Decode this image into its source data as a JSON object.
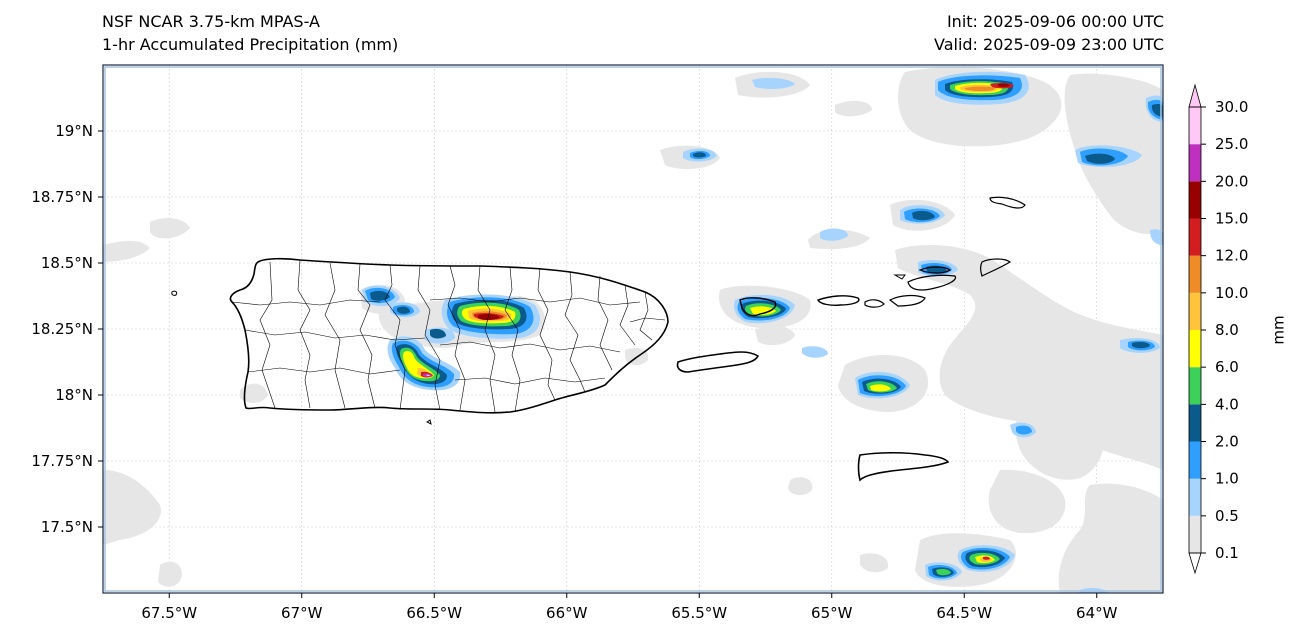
{
  "header": {
    "model": "NSF NCAR 3.75-km MPAS-A",
    "field": "1-hr Accumulated Precipitation (mm)",
    "init": "Init: 2025-09-06 00:00 UTC",
    "valid": "Valid: 2025-09-09 23:00 UTC"
  },
  "axes": {
    "lon_ticks": [
      "67.5°W",
      "67°W",
      "66.5°W",
      "66°W",
      "65.5°W",
      "65°W",
      "64.5°W",
      "64°W"
    ],
    "lat_ticks": [
      "19°N",
      "18.75°N",
      "18.5°N",
      "18.25°N",
      "18°N",
      "17.75°N",
      "17.5°N"
    ],
    "lon_values": [
      -67.5,
      -67.0,
      -66.5,
      -66.0,
      -65.5,
      -65.0,
      -64.5,
      -64.0
    ],
    "lat_values": [
      19.0,
      18.75,
      18.5,
      18.25,
      18.0,
      17.75,
      17.5
    ],
    "lon_range": [
      -67.75,
      -63.75
    ],
    "lat_range": [
      17.25,
      19.25
    ],
    "grid": true
  },
  "colorbar": {
    "unit_label": "mm",
    "levels": [
      "0.1",
      "0.5",
      "1.0",
      "2.0",
      "4.0",
      "6.0",
      "8.0",
      "10.0",
      "12.0",
      "15.0",
      "20.0",
      "25.0",
      "30.0"
    ],
    "colors": [
      "#e6e6e6",
      "#a6d4ff",
      "#2e9eff",
      "#0a5a8c",
      "#3cd25a",
      "#ffff00",
      "#ffc43c",
      "#f08c28",
      "#d21e1e",
      "#960000",
      "#c030c0",
      "#ffc8f5"
    ],
    "extend": "both"
  },
  "colors": {
    "coast": "#000000",
    "border": "#000000",
    "frame": "#1a2a44",
    "grid": "#cccccc"
  }
}
